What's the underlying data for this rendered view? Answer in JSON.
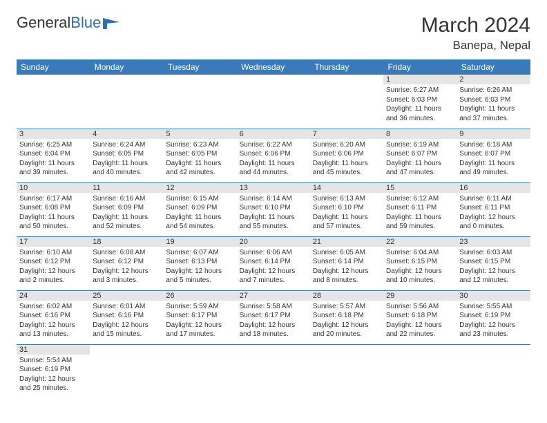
{
  "logo": {
    "text1": "General",
    "text2": "Blue"
  },
  "title": "March 2024",
  "location": "Banepa, Nepal",
  "colors": {
    "header_bg": "#3a7ab8",
    "header_text": "#ffffff",
    "daynum_bg": "#e5e5e5",
    "border": "#3a7ab8",
    "text": "#333333",
    "logo_blue": "#2f6fad"
  },
  "weekdays": [
    "Sunday",
    "Monday",
    "Tuesday",
    "Wednesday",
    "Thursday",
    "Friday",
    "Saturday"
  ],
  "weeks": [
    [
      null,
      null,
      null,
      null,
      null,
      {
        "n": "1",
        "sr": "Sunrise: 6:27 AM",
        "ss": "Sunset: 6:03 PM",
        "dl1": "Daylight: 11 hours",
        "dl2": "and 36 minutes."
      },
      {
        "n": "2",
        "sr": "Sunrise: 6:26 AM",
        "ss": "Sunset: 6:03 PM",
        "dl1": "Daylight: 11 hours",
        "dl2": "and 37 minutes."
      }
    ],
    [
      {
        "n": "3",
        "sr": "Sunrise: 6:25 AM",
        "ss": "Sunset: 6:04 PM",
        "dl1": "Daylight: 11 hours",
        "dl2": "and 39 minutes."
      },
      {
        "n": "4",
        "sr": "Sunrise: 6:24 AM",
        "ss": "Sunset: 6:05 PM",
        "dl1": "Daylight: 11 hours",
        "dl2": "and 40 minutes."
      },
      {
        "n": "5",
        "sr": "Sunrise: 6:23 AM",
        "ss": "Sunset: 6:05 PM",
        "dl1": "Daylight: 11 hours",
        "dl2": "and 42 minutes."
      },
      {
        "n": "6",
        "sr": "Sunrise: 6:22 AM",
        "ss": "Sunset: 6:06 PM",
        "dl1": "Daylight: 11 hours",
        "dl2": "and 44 minutes."
      },
      {
        "n": "7",
        "sr": "Sunrise: 6:20 AM",
        "ss": "Sunset: 6:06 PM",
        "dl1": "Daylight: 11 hours",
        "dl2": "and 45 minutes."
      },
      {
        "n": "8",
        "sr": "Sunrise: 6:19 AM",
        "ss": "Sunset: 6:07 PM",
        "dl1": "Daylight: 11 hours",
        "dl2": "and 47 minutes."
      },
      {
        "n": "9",
        "sr": "Sunrise: 6:18 AM",
        "ss": "Sunset: 6:07 PM",
        "dl1": "Daylight: 11 hours",
        "dl2": "and 49 minutes."
      }
    ],
    [
      {
        "n": "10",
        "sr": "Sunrise: 6:17 AM",
        "ss": "Sunset: 6:08 PM",
        "dl1": "Daylight: 11 hours",
        "dl2": "and 50 minutes."
      },
      {
        "n": "11",
        "sr": "Sunrise: 6:16 AM",
        "ss": "Sunset: 6:09 PM",
        "dl1": "Daylight: 11 hours",
        "dl2": "and 52 minutes."
      },
      {
        "n": "12",
        "sr": "Sunrise: 6:15 AM",
        "ss": "Sunset: 6:09 PM",
        "dl1": "Daylight: 11 hours",
        "dl2": "and 54 minutes."
      },
      {
        "n": "13",
        "sr": "Sunrise: 6:14 AM",
        "ss": "Sunset: 6:10 PM",
        "dl1": "Daylight: 11 hours",
        "dl2": "and 55 minutes."
      },
      {
        "n": "14",
        "sr": "Sunrise: 6:13 AM",
        "ss": "Sunset: 6:10 PM",
        "dl1": "Daylight: 11 hours",
        "dl2": "and 57 minutes."
      },
      {
        "n": "15",
        "sr": "Sunrise: 6:12 AM",
        "ss": "Sunset: 6:11 PM",
        "dl1": "Daylight: 11 hours",
        "dl2": "and 59 minutes."
      },
      {
        "n": "16",
        "sr": "Sunrise: 6:11 AM",
        "ss": "Sunset: 6:11 PM",
        "dl1": "Daylight: 12 hours",
        "dl2": "and 0 minutes."
      }
    ],
    [
      {
        "n": "17",
        "sr": "Sunrise: 6:10 AM",
        "ss": "Sunset: 6:12 PM",
        "dl1": "Daylight: 12 hours",
        "dl2": "and 2 minutes."
      },
      {
        "n": "18",
        "sr": "Sunrise: 6:08 AM",
        "ss": "Sunset: 6:12 PM",
        "dl1": "Daylight: 12 hours",
        "dl2": "and 3 minutes."
      },
      {
        "n": "19",
        "sr": "Sunrise: 6:07 AM",
        "ss": "Sunset: 6:13 PM",
        "dl1": "Daylight: 12 hours",
        "dl2": "and 5 minutes."
      },
      {
        "n": "20",
        "sr": "Sunrise: 6:06 AM",
        "ss": "Sunset: 6:14 PM",
        "dl1": "Daylight: 12 hours",
        "dl2": "and 7 minutes."
      },
      {
        "n": "21",
        "sr": "Sunrise: 6:05 AM",
        "ss": "Sunset: 6:14 PM",
        "dl1": "Daylight: 12 hours",
        "dl2": "and 8 minutes."
      },
      {
        "n": "22",
        "sr": "Sunrise: 6:04 AM",
        "ss": "Sunset: 6:15 PM",
        "dl1": "Daylight: 12 hours",
        "dl2": "and 10 minutes."
      },
      {
        "n": "23",
        "sr": "Sunrise: 6:03 AM",
        "ss": "Sunset: 6:15 PM",
        "dl1": "Daylight: 12 hours",
        "dl2": "and 12 minutes."
      }
    ],
    [
      {
        "n": "24",
        "sr": "Sunrise: 6:02 AM",
        "ss": "Sunset: 6:16 PM",
        "dl1": "Daylight: 12 hours",
        "dl2": "and 13 minutes."
      },
      {
        "n": "25",
        "sr": "Sunrise: 6:01 AM",
        "ss": "Sunset: 6:16 PM",
        "dl1": "Daylight: 12 hours",
        "dl2": "and 15 minutes."
      },
      {
        "n": "26",
        "sr": "Sunrise: 5:59 AM",
        "ss": "Sunset: 6:17 PM",
        "dl1": "Daylight: 12 hours",
        "dl2": "and 17 minutes."
      },
      {
        "n": "27",
        "sr": "Sunrise: 5:58 AM",
        "ss": "Sunset: 6:17 PM",
        "dl1": "Daylight: 12 hours",
        "dl2": "and 18 minutes."
      },
      {
        "n": "28",
        "sr": "Sunrise: 5:57 AM",
        "ss": "Sunset: 6:18 PM",
        "dl1": "Daylight: 12 hours",
        "dl2": "and 20 minutes."
      },
      {
        "n": "29",
        "sr": "Sunrise: 5:56 AM",
        "ss": "Sunset: 6:18 PM",
        "dl1": "Daylight: 12 hours",
        "dl2": "and 22 minutes."
      },
      {
        "n": "30",
        "sr": "Sunrise: 5:55 AM",
        "ss": "Sunset: 6:19 PM",
        "dl1": "Daylight: 12 hours",
        "dl2": "and 23 minutes."
      }
    ],
    [
      {
        "n": "31",
        "sr": "Sunrise: 5:54 AM",
        "ss": "Sunset: 6:19 PM",
        "dl1": "Daylight: 12 hours",
        "dl2": "and 25 minutes."
      },
      null,
      null,
      null,
      null,
      null,
      null
    ]
  ]
}
